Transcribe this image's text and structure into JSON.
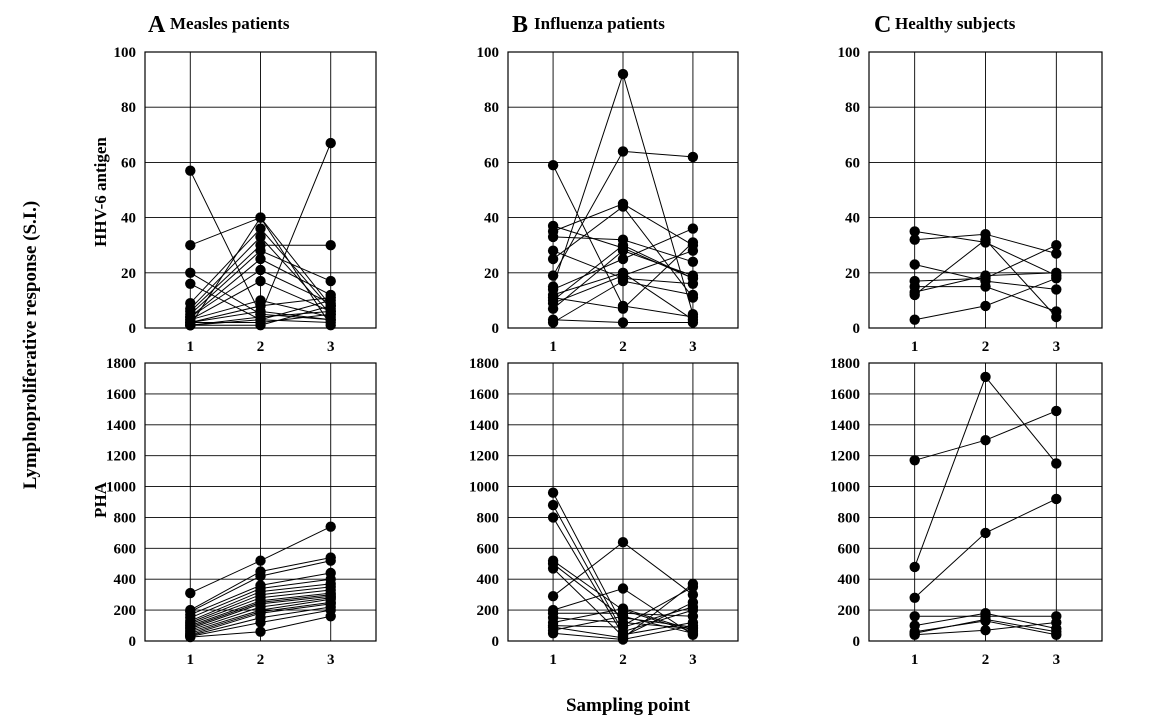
{
  "figure": {
    "ylabel": "Lymphoproliferative response (S.I.)",
    "xlabel": "Sampling point",
    "row_labels": [
      "HHV-6 antigen",
      "PHA"
    ]
  },
  "chart_data": [
    {
      "type": "line",
      "panel": "A",
      "title": "Measles patients",
      "row": "HHV-6 antigen",
      "x": [
        1,
        2,
        3
      ],
      "xticks": [
        "1",
        "2",
        "3"
      ],
      "ylim": [
        0,
        100
      ],
      "yticks": [
        0,
        20,
        40,
        60,
        80,
        100
      ],
      "grid": true,
      "series": [
        {
          "values": [
            57,
            5,
            3
          ]
        },
        {
          "values": [
            30,
            40,
            8
          ]
        },
        {
          "values": [
            20,
            5,
            67
          ]
        },
        {
          "values": [
            16,
            3,
            10
          ]
        },
        {
          "values": [
            9,
            36,
            7
          ]
        },
        {
          "values": [
            7,
            33,
            5
          ]
        },
        {
          "values": [
            6,
            30,
            30
          ]
        },
        {
          "values": [
            5,
            28,
            17
          ]
        },
        {
          "values": [
            4,
            25,
            12
          ]
        },
        {
          "values": [
            4,
            21,
            9
          ]
        },
        {
          "values": [
            3,
            17,
            6
          ]
        },
        {
          "values": [
            3,
            10,
            4
          ]
        },
        {
          "values": [
            2,
            8,
            11
          ]
        },
        {
          "values": [
            2,
            6,
            3
          ]
        },
        {
          "values": [
            1,
            4,
            6
          ]
        },
        {
          "values": [
            1,
            3,
            2
          ]
        },
        {
          "values": [
            2,
            2,
            5
          ]
        },
        {
          "values": [
            1,
            1,
            8
          ]
        },
        {
          "values": [
            1,
            40,
            1
          ]
        }
      ]
    },
    {
      "type": "line",
      "panel": "B",
      "title": "Influenza patients",
      "row": "HHV-6 antigen",
      "x": [
        1,
        2,
        3
      ],
      "xticks": [
        "1",
        "2",
        "3"
      ],
      "ylim": [
        0,
        100
      ],
      "yticks": [
        0,
        20,
        40,
        60,
        80,
        100
      ],
      "grid": true,
      "series": [
        {
          "values": [
            59,
            8,
            4
          ]
        },
        {
          "values": [
            37,
            29,
            18
          ]
        },
        {
          "values": [
            35,
            45,
            30
          ]
        },
        {
          "values": [
            33,
            32,
            24
          ]
        },
        {
          "values": [
            28,
            18,
            16
          ]
        },
        {
          "values": [
            25,
            44,
            11
          ]
        },
        {
          "values": [
            19,
            64,
            62
          ]
        },
        {
          "values": [
            15,
            92,
            5
          ]
        },
        {
          "values": [
            14,
            25,
            36
          ]
        },
        {
          "values": [
            12,
            20,
            3
          ]
        },
        {
          "values": [
            11,
            7,
            31
          ]
        },
        {
          "values": [
            9,
            19,
            28
          ]
        },
        {
          "values": [
            7,
            28,
            19
          ]
        },
        {
          "values": [
            3,
            2,
            2
          ]
        },
        {
          "values": [
            2,
            17,
            12
          ]
        },
        {
          "values": [
            10,
            30,
            18
          ]
        }
      ]
    },
    {
      "type": "line",
      "panel": "C",
      "title": "Healthy subjects",
      "row": "HHV-6 antigen",
      "x": [
        1,
        2,
        3
      ],
      "xticks": [
        "1",
        "2",
        "3"
      ],
      "ylim": [
        0,
        100
      ],
      "yticks": [
        0,
        20,
        40,
        60,
        80,
        100
      ],
      "grid": true,
      "series": [
        {
          "values": [
            35,
            31,
            19
          ]
        },
        {
          "values": [
            32,
            34,
            27
          ]
        },
        {
          "values": [
            23,
            17,
            14
          ]
        },
        {
          "values": [
            17,
            18,
            30
          ]
        },
        {
          "values": [
            15,
            15,
            6
          ]
        },
        {
          "values": [
            13,
            19,
            20
          ]
        },
        {
          "values": [
            12,
            32,
            4
          ]
        },
        {
          "values": [
            3,
            8,
            18
          ]
        }
      ]
    },
    {
      "type": "line",
      "panel": "A",
      "title": "",
      "row": "PHA",
      "x": [
        1,
        2,
        3
      ],
      "xticks": [
        "1",
        "2",
        "3"
      ],
      "ylim": [
        0,
        1800
      ],
      "yticks": [
        0,
        200,
        400,
        600,
        800,
        1000,
        1200,
        1400,
        1600,
        1800
      ],
      "grid": true,
      "series": [
        {
          "values": [
            310,
            520,
            740
          ]
        },
        {
          "values": [
            200,
            450,
            540
          ]
        },
        {
          "values": [
            190,
            420,
            520
          ]
        },
        {
          "values": [
            170,
            360,
            440
          ]
        },
        {
          "values": [
            150,
            340,
            400
          ]
        },
        {
          "values": [
            130,
            320,
            370
          ]
        },
        {
          "values": [
            120,
            300,
            350
          ]
        },
        {
          "values": [
            110,
            280,
            330
          ]
        },
        {
          "values": [
            100,
            260,
            310
          ]
        },
        {
          "values": [
            90,
            250,
            300
          ]
        },
        {
          "values": [
            80,
            240,
            290
          ]
        },
        {
          "values": [
            70,
            220,
            280
          ]
        },
        {
          "values": [
            60,
            200,
            270
          ]
        },
        {
          "values": [
            50,
            190,
            250
          ]
        },
        {
          "values": [
            40,
            180,
            240
          ]
        },
        {
          "values": [
            35,
            150,
            220
          ]
        },
        {
          "values": [
            30,
            120,
            200
          ]
        },
        {
          "values": [
            25,
            60,
            160
          ]
        }
      ]
    },
    {
      "type": "line",
      "panel": "B",
      "title": "",
      "row": "PHA",
      "x": [
        1,
        2,
        3
      ],
      "xticks": [
        "1",
        "2",
        "3"
      ],
      "ylim": [
        0,
        1800
      ],
      "yticks": [
        0,
        200,
        400,
        600,
        800,
        1000,
        1200,
        1400,
        1600,
        1800
      ],
      "grid": true,
      "series": [
        {
          "values": [
            960,
            100,
            350
          ]
        },
        {
          "values": [
            880,
            60,
            200
          ]
        },
        {
          "values": [
            800,
            40,
            120
          ]
        },
        {
          "values": [
            520,
            200,
            60
          ]
        },
        {
          "values": [
            500,
            150,
            90
          ]
        },
        {
          "values": [
            470,
            30,
            250
          ]
        },
        {
          "values": [
            290,
            640,
            300
          ]
        },
        {
          "values": [
            200,
            340,
            40
          ]
        },
        {
          "values": [
            180,
            180,
            160
          ]
        },
        {
          "values": [
            150,
            120,
            80
          ]
        },
        {
          "values": [
            120,
            210,
            70
          ]
        },
        {
          "values": [
            100,
            90,
            220
          ]
        },
        {
          "values": [
            90,
            20,
            370
          ]
        },
        {
          "values": [
            70,
            160,
            50
          ]
        },
        {
          "values": [
            50,
            10,
            100
          ]
        }
      ]
    },
    {
      "type": "line",
      "panel": "C",
      "title": "",
      "row": "PHA",
      "x": [
        1,
        2,
        3
      ],
      "xticks": [
        "1",
        "2",
        "3"
      ],
      "ylim": [
        0,
        1800
      ],
      "yticks": [
        0,
        200,
        400,
        600,
        800,
        1000,
        1200,
        1400,
        1600,
        1800
      ],
      "grid": true,
      "series": [
        {
          "values": [
            1170,
            1300,
            1490
          ]
        },
        {
          "values": [
            480,
            1710,
            1150
          ]
        },
        {
          "values": [
            280,
            700,
            920
          ]
        },
        {
          "values": [
            160,
            160,
            160
          ]
        },
        {
          "values": [
            100,
            180,
            80
          ]
        },
        {
          "values": [
            60,
            130,
            40
          ]
        },
        {
          "values": [
            40,
            70,
            120
          ]
        },
        {
          "values": [
            50,
            140,
            60
          ]
        }
      ]
    }
  ]
}
